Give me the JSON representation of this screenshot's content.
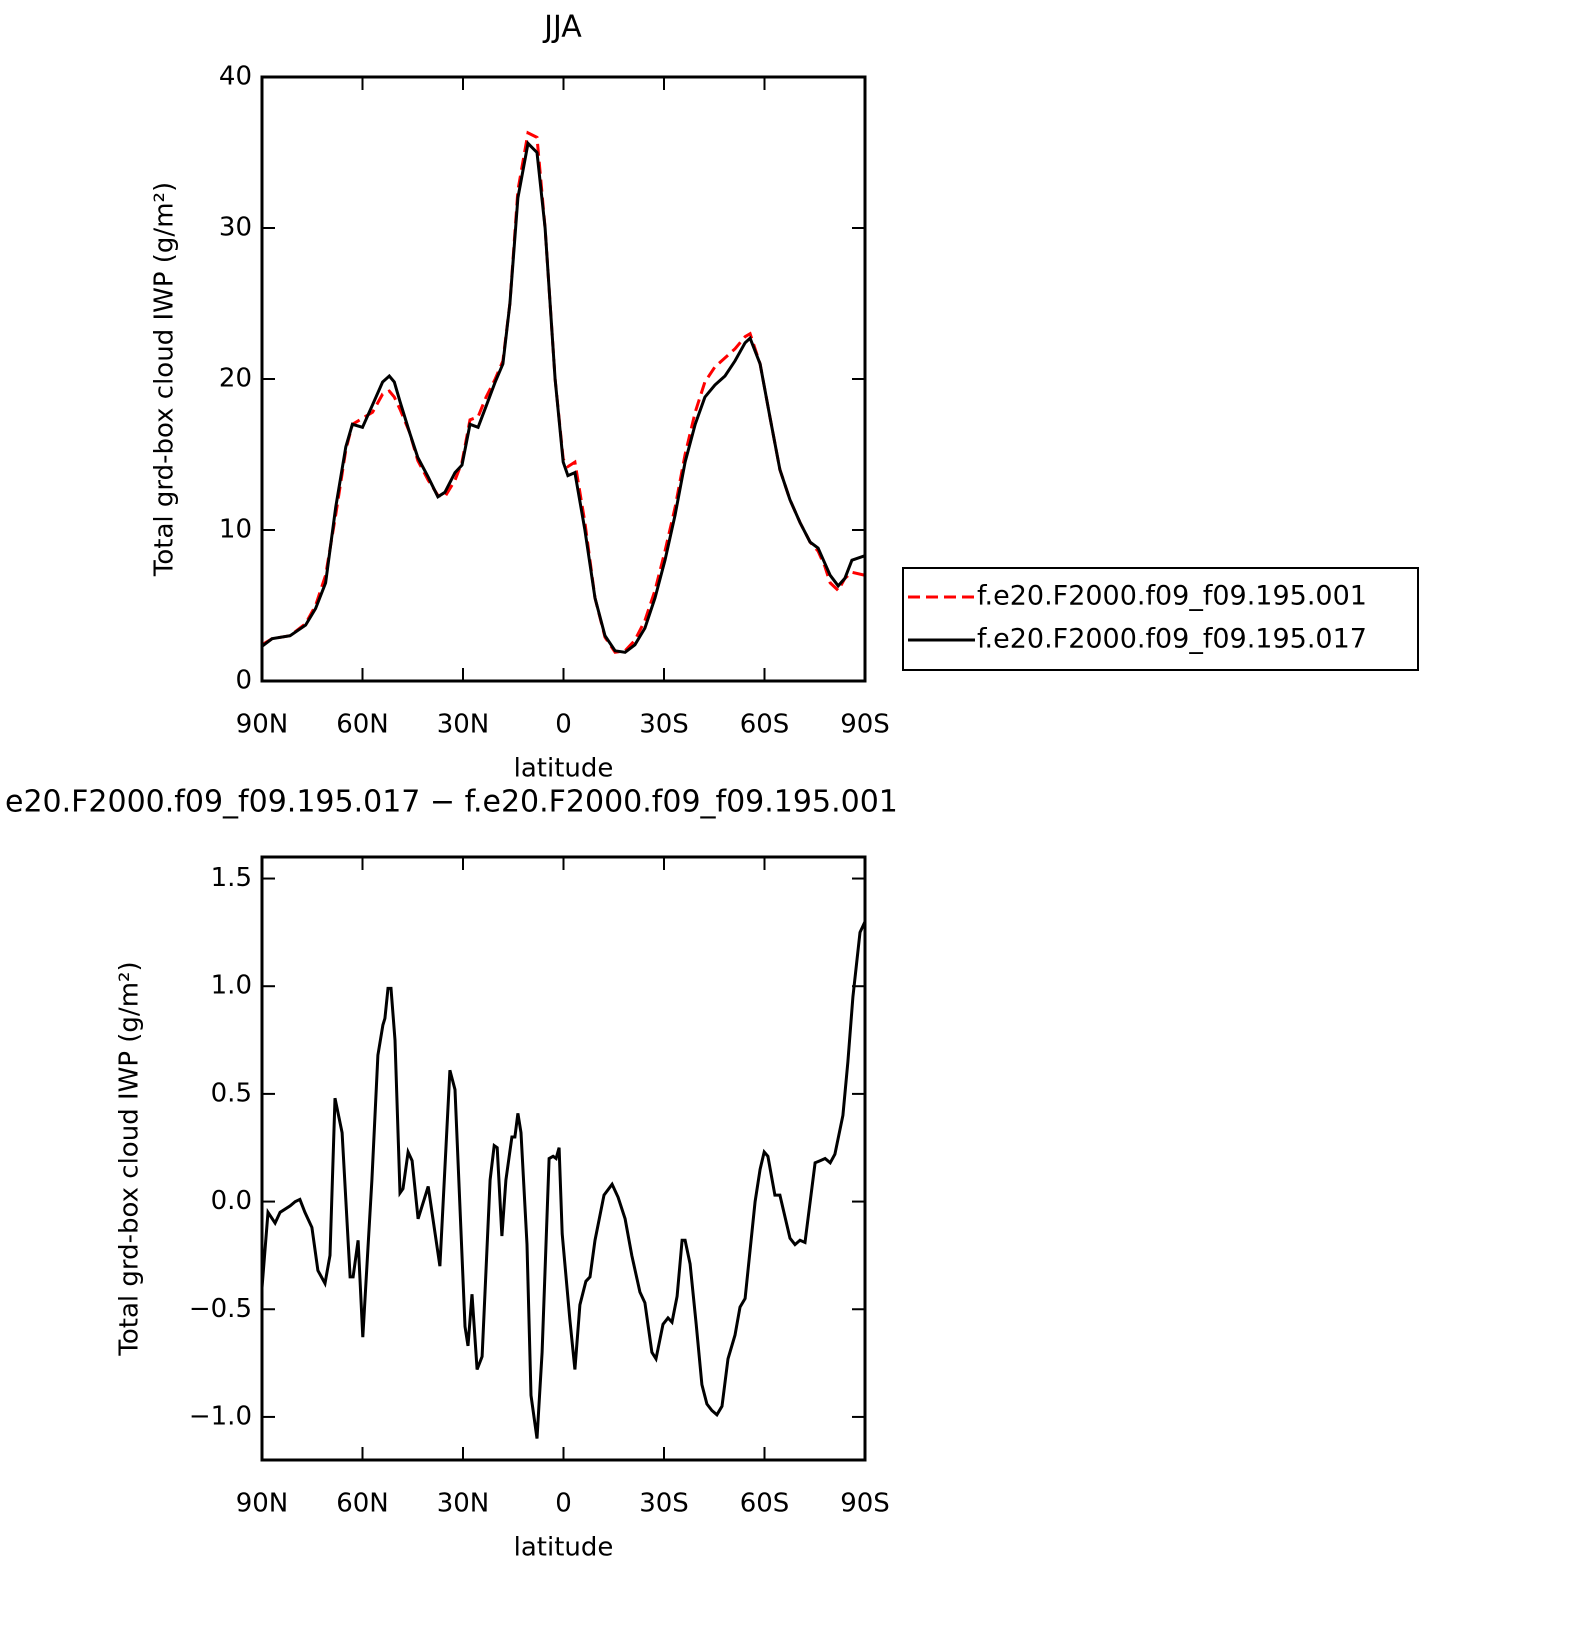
{
  "chart_data": [
    {
      "type": "line",
      "title": "JJA",
      "ylabel": "Total grd-box cloud IWP (g/m²)",
      "xlabel": "latitude",
      "xlim": [
        90,
        -90
      ],
      "ylim": [
        0,
        40
      ],
      "xticks": [
        {
          "value": 90,
          "label": "90N"
        },
        {
          "value": 60,
          "label": "60N"
        },
        {
          "value": 30,
          "label": "30N"
        },
        0,
        {
          "value": -30,
          "label": "30S"
        },
        {
          "value": -60,
          "label": "60S"
        },
        {
          "value": -90,
          "label": "90S"
        }
      ],
      "yticks": [
        0,
        10,
        20,
        30,
        40
      ],
      "legend": "right",
      "x": [
        90,
        87,
        81.6,
        77,
        74,
        71,
        68,
        65,
        63,
        60,
        57,
        54,
        52,
        50.5,
        48.8,
        46,
        43.5,
        40.4,
        37.5,
        35.4,
        32.4,
        30.3,
        27.9,
        25.5,
        23.1,
        20.4,
        18.1,
        16,
        13.6,
        10.6,
        7.9,
        5.5,
        2.5,
        0.1,
        -1.3,
        -3.4,
        -6.4,
        -9.4,
        -12.4,
        -15.4,
        -18.4,
        -21.3,
        -24.3,
        -27.3,
        -30.3,
        -33.3,
        -36.3,
        -39.3,
        -42.2,
        -45.2,
        -48.2,
        -51.2,
        -54.2,
        -55.7,
        -58.7,
        -61.6,
        -64.6,
        -67.6,
        -70.6,
        -73.6,
        -76,
        -78,
        -79.6,
        -82,
        -84,
        -86.1,
        -90
      ],
      "series": [
        {
          "name": "f.e20.F2000.f09_f09.195.001",
          "color": "#ff0000",
          "line_style": "dashed",
          "values": [
            2.4,
            2.8,
            3.0,
            3.8,
            5.0,
            7.0,
            11.0,
            15.3,
            17.0,
            17.4,
            17.8,
            19.0,
            19.2,
            18.8,
            18.0,
            16.5,
            14.6,
            13.3,
            12.3,
            12.2,
            13.3,
            14.5,
            17.3,
            17.5,
            18.8,
            20.0,
            21.2,
            25,
            32.5,
            36.3,
            36.0,
            30,
            20,
            14.7,
            14.2,
            14.5,
            10.5,
            5.5,
            2.9,
            1.9,
            2.0,
            2.7,
            4.0,
            6.0,
            8.6,
            11.5,
            15.0,
            17.8,
            19.8,
            20.8,
            21.4,
            22.0,
            22.8,
            23.0,
            21,
            17.5,
            14,
            12,
            10.5,
            9.2,
            8.6,
            7.6,
            6.5,
            6.0,
            6.8,
            7.2,
            7.0
          ]
        },
        {
          "name": "f.e20.F2000.f09_f09.195.017",
          "color": "#000000",
          "line_style": "solid",
          "values": [
            2.3,
            2.8,
            3.0,
            3.7,
            4.8,
            6.5,
            11.5,
            15.5,
            17.0,
            16.8,
            18.3,
            19.8,
            20.2,
            19.8,
            18.5,
            16.5,
            14.8,
            13.5,
            12.2,
            12.5,
            13.8,
            14.3,
            17.0,
            16.8,
            18.2,
            19.8,
            21.0,
            25,
            32,
            35.6,
            35,
            30,
            20,
            14.5,
            13.6,
            13.8,
            10,
            5.5,
            3.0,
            2.0,
            1.9,
            2.4,
            3.5,
            5.5,
            8.0,
            11.0,
            14.5,
            17.0,
            18.8,
            19.6,
            20.2,
            21.2,
            22.4,
            22.7,
            21,
            17.5,
            14,
            12,
            10.5,
            9.2,
            8.8,
            7.8,
            7.0,
            6.3,
            6.8,
            8.0,
            8.3
          ]
        }
      ]
    },
    {
      "type": "line",
      "title": "e20.F2000.f09_f09.195.017 − f.e20.F2000.f09_f09.195.001",
      "ylabel": "Total grd-box cloud IWP (g/m²)",
      "xlabel": "latitude",
      "xlim": [
        90,
        -90
      ],
      "ylim": [
        -1.2,
        1.6
      ],
      "xticks": [
        {
          "value": 90,
          "label": "90N"
        },
        {
          "value": 60,
          "label": "60N"
        },
        {
          "value": 30,
          "label": "30N"
        },
        0,
        {
          "value": -30,
          "label": "30S"
        },
        {
          "value": -60,
          "label": "60S"
        },
        {
          "value": -90,
          "label": "90S"
        }
      ],
      "yticks": [
        {
          "value": -1.0,
          "label": "−1.0"
        },
        {
          "value": -0.5,
          "label": "−0.5"
        },
        {
          "value": 0,
          "label": "0.0"
        },
        0.5,
        {
          "value": 1.0,
          "label": "1.0"
        },
        1.5
      ],
      "color": "#000000",
      "x": [
        90,
        88.2,
        86.1,
        84.6,
        81.6,
        80.1,
        78.7,
        77.2,
        75.1,
        73.3,
        71.2,
        69.7,
        68.2,
        66.1,
        63.7,
        62.8,
        61.3,
        59.9,
        57.2,
        55.4,
        53.9,
        53.3,
        52.4,
        51.5,
        50.3,
        48.8,
        47.9,
        46.4,
        45.2,
        43.4,
        40.4,
        36.9,
        33.9,
        32.4,
        29.4,
        28.5,
        27.3,
        25.8,
        24.3,
        21.9,
        20.7,
        19.8,
        18.4,
        17.2,
        15.4,
        14.5,
        13.6,
        12.7,
        10.9,
        9.7,
        7.9,
        6.4,
        4.3,
        3.1,
        2.2,
        1.3,
        0.4,
        -1.9,
        -3.4,
        -4.9,
        -6.7,
        -7.9,
        -9.4,
        -12.1,
        -14.5,
        -16.3,
        -18.4,
        -20.4,
        -22.8,
        -24.3,
        -26.4,
        -27.6,
        -29.7,
        -31.2,
        -32.4,
        -33.9,
        -35.4,
        -36.3,
        -37.8,
        -39.6,
        -41.3,
        -42.8,
        -44.3,
        -45.8,
        -47.3,
        -49.1,
        -51.2,
        -52.7,
        -54.2,
        -57.2,
        -58.7,
        -59.9,
        -61.0,
        -63.1,
        -64.6,
        -67.6,
        -69.1,
        -70.6,
        -72.1,
        -75.1,
        -76.6,
        -78.1,
        -79.6,
        -81.0,
        -83.4,
        -84.9,
        -86.4,
        -88.5,
        -90
      ],
      "values": [
        -0.4,
        -0.05,
        -0.1,
        -0.05,
        -0.02,
        0.0,
        0.01,
        -0.05,
        -0.12,
        -0.32,
        -0.38,
        -0.25,
        0.48,
        0.32,
        -0.35,
        -0.35,
        -0.18,
        -0.63,
        0.1,
        0.68,
        0.82,
        0.85,
        0.99,
        0.99,
        0.75,
        0.04,
        0.06,
        0.23,
        0.19,
        -0.08,
        0.07,
        -0.3,
        0.61,
        0.52,
        -0.58,
        -0.67,
        -0.43,
        -0.78,
        -0.72,
        0.1,
        0.26,
        0.25,
        -0.16,
        0.1,
        0.3,
        0.3,
        0.41,
        0.32,
        -0.2,
        -0.9,
        -1.1,
        -0.7,
        0.2,
        0.21,
        0.2,
        0.25,
        -0.15,
        -0.55,
        -0.78,
        -0.48,
        -0.37,
        -0.35,
        -0.18,
        0.03,
        0.08,
        0.02,
        -0.08,
        -0.25,
        -0.42,
        -0.47,
        -0.7,
        -0.73,
        -0.57,
        -0.54,
        -0.56,
        -0.44,
        -0.18,
        -0.18,
        -0.29,
        -0.57,
        -0.85,
        -0.94,
        -0.97,
        -0.99,
        -0.95,
        -0.73,
        -0.62,
        -0.49,
        -0.45,
        0.0,
        0.15,
        0.23,
        0.21,
        0.03,
        0.03,
        -0.17,
        -0.2,
        -0.18,
        -0.19,
        0.18,
        0.19,
        0.2,
        0.18,
        0.22,
        0.4,
        0.65,
        0.95,
        1.25,
        1.3
      ]
    }
  ]
}
